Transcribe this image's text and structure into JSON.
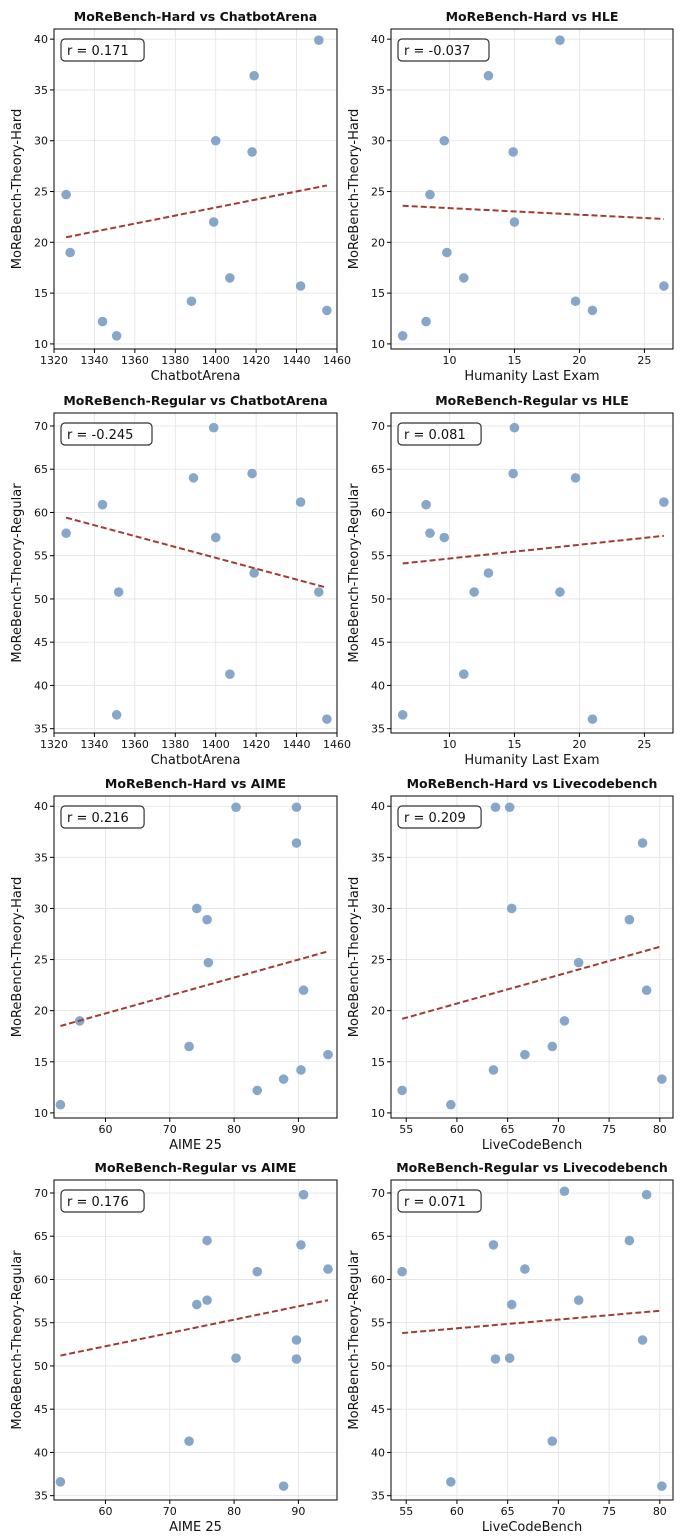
{
  "figure": {
    "colors": {
      "point": "#7d9fc6",
      "trend": "#a13b34",
      "grid": "#e3e3e3",
      "axis": "#000000"
    }
  },
  "chart_data": [
    {
      "type": "scatter",
      "title": "MoReBench-Hard vs ChatbotArena",
      "xlabel": "ChatbotArena",
      "ylabel": "MoReBench-Theory-Hard",
      "xlim": [
        1320,
        1460
      ],
      "ylim": [
        9.5,
        41
      ],
      "xticks": [
        1320,
        1340,
        1360,
        1380,
        1400,
        1420,
        1440,
        1460
      ],
      "yticks": [
        10,
        15,
        20,
        25,
        30,
        35,
        40
      ],
      "r_label": "r = 0.171",
      "points": [
        [
          1326,
          24.7
        ],
        [
          1328,
          19
        ],
        [
          1344,
          12.2
        ],
        [
          1351,
          10.8
        ],
        [
          1388,
          14.2
        ],
        [
          1399,
          22
        ],
        [
          1400,
          30
        ],
        [
          1407,
          16.5
        ],
        [
          1418,
          28.9
        ],
        [
          1419,
          36.4
        ],
        [
          1442,
          15.7
        ],
        [
          1451,
          39.9
        ],
        [
          1455,
          13.3
        ]
      ],
      "trend": [
        [
          1326,
          20.5
        ],
        [
          1455,
          25.6
        ]
      ]
    },
    {
      "type": "scatter",
      "title": "MoReBench-Hard vs HLE",
      "xlabel": "Humanity Last Exam",
      "ylabel": "MoReBench-Theory-Hard",
      "xlim": [
        5.5,
        27.2
      ],
      "ylim": [
        9.5,
        41
      ],
      "xticks": [
        10,
        15,
        20,
        25
      ],
      "yticks": [
        10,
        15,
        20,
        25,
        30,
        35,
        40
      ],
      "r_label": "r = -0.037",
      "points": [
        [
          6.4,
          10.8
        ],
        [
          8.2,
          12.2
        ],
        [
          8.5,
          24.7
        ],
        [
          9.6,
          30
        ],
        [
          9.8,
          19
        ],
        [
          11.1,
          16.5
        ],
        [
          13,
          36.4
        ],
        [
          14.9,
          28.9
        ],
        [
          15,
          22
        ],
        [
          18.5,
          39.9
        ],
        [
          19.7,
          14.2
        ],
        [
          21,
          13.3
        ],
        [
          26.5,
          15.7
        ]
      ],
      "trend": [
        [
          6.4,
          23.6
        ],
        [
          26.5,
          22.3
        ]
      ]
    },
    {
      "type": "scatter",
      "title": "MoReBench-Regular vs ChatbotArena",
      "xlabel": "ChatbotArena",
      "ylabel": "MoReBench-Theory-Regular",
      "xlim": [
        1320,
        1460
      ],
      "ylim": [
        34.5,
        71.5
      ],
      "xticks": [
        1320,
        1340,
        1360,
        1380,
        1400,
        1420,
        1440,
        1460
      ],
      "yticks": [
        35,
        40,
        45,
        50,
        55,
        60,
        65,
        70
      ],
      "r_label": "r = -0.245",
      "points": [
        [
          1326,
          57.6
        ],
        [
          1344,
          60.9
        ],
        [
          1351,
          36.6
        ],
        [
          1352,
          50.8
        ],
        [
          1389,
          64
        ],
        [
          1399,
          69.8
        ],
        [
          1400,
          57.1
        ],
        [
          1407,
          41.3
        ],
        [
          1418,
          64.5
        ],
        [
          1419,
          53
        ],
        [
          1442,
          61.2
        ],
        [
          1451,
          50.8
        ],
        [
          1455,
          36.1
        ]
      ],
      "trend": [
        [
          1326,
          59.4
        ],
        [
          1455,
          51.3
        ]
      ]
    },
    {
      "type": "scatter",
      "title": "MoReBench-Regular vs HLE",
      "xlabel": "Humanity Last Exam",
      "ylabel": "MoReBench-Theory-Regular",
      "xlim": [
        5.5,
        27.2
      ],
      "ylim": [
        34.5,
        71.5
      ],
      "xticks": [
        10,
        15,
        20,
        25
      ],
      "yticks": [
        35,
        40,
        45,
        50,
        55,
        60,
        65,
        70
      ],
      "r_label": "r = 0.081",
      "points": [
        [
          6.4,
          36.6
        ],
        [
          8.2,
          60.9
        ],
        [
          8.5,
          57.6
        ],
        [
          9.6,
          57.1
        ],
        [
          11.1,
          41.3
        ],
        [
          11.9,
          50.8
        ],
        [
          13,
          53
        ],
        [
          14.9,
          64.5
        ],
        [
          15,
          69.8
        ],
        [
          18.5,
          50.8
        ],
        [
          19.7,
          64
        ],
        [
          21,
          36.1
        ],
        [
          26.5,
          61.2
        ]
      ],
      "trend": [
        [
          6.4,
          54.1
        ],
        [
          26.5,
          57.3
        ]
      ]
    },
    {
      "type": "scatter",
      "title": "MoReBench-Hard vs AIME",
      "xlabel": "AIME 25",
      "ylabel": "MoReBench-Theory-Hard",
      "xlim": [
        52,
        96
      ],
      "ylim": [
        9.5,
        41
      ],
      "xticks": [
        60,
        70,
        80,
        90
      ],
      "yticks": [
        10,
        15,
        20,
        25,
        30,
        35,
        40
      ],
      "r_label": "r = 0.216",
      "points": [
        [
          53,
          10.8
        ],
        [
          56,
          19
        ],
        [
          73,
          16.5
        ],
        [
          74.2,
          30
        ],
        [
          75.8,
          28.9
        ],
        [
          76,
          24.7
        ],
        [
          80.3,
          39.9
        ],
        [
          83.6,
          12.2
        ],
        [
          87.7,
          13.3
        ],
        [
          89.7,
          39.9
        ],
        [
          89.7,
          36.4
        ],
        [
          90.4,
          14.2
        ],
        [
          90.8,
          22
        ],
        [
          94.6,
          15.7
        ]
      ],
      "trend": [
        [
          53,
          18.5
        ],
        [
          94.6,
          25.8
        ]
      ]
    },
    {
      "type": "scatter",
      "title": "MoReBench-Hard vs Livecodebench",
      "xlabel": "LiveCodeBench",
      "ylabel": "MoReBench-Theory-Hard",
      "xlim": [
        53.5,
        81.3
      ],
      "ylim": [
        9.5,
        41
      ],
      "xticks": [
        55,
        60,
        65,
        70,
        75,
        80
      ],
      "yticks": [
        10,
        15,
        20,
        25,
        30,
        35,
        40
      ],
      "r_label": "r = 0.209",
      "points": [
        [
          54.6,
          12.2
        ],
        [
          59.4,
          10.8
        ],
        [
          63.6,
          14.2
        ],
        [
          63.8,
          39.9
        ],
        [
          65.2,
          39.9
        ],
        [
          65.4,
          30
        ],
        [
          66.7,
          15.7
        ],
        [
          69.4,
          16.5
        ],
        [
          70.6,
          19
        ],
        [
          72,
          24.7
        ],
        [
          77,
          28.9
        ],
        [
          78.3,
          36.4
        ],
        [
          78.7,
          22
        ],
        [
          80.2,
          13.3
        ]
      ],
      "trend": [
        [
          54.6,
          19.2
        ],
        [
          80.2,
          26.3
        ]
      ]
    },
    {
      "type": "scatter",
      "title": "MoReBench-Regular vs AIME",
      "xlabel": "AIME 25",
      "ylabel": "MoReBench-Theory-Regular",
      "xlim": [
        52,
        96
      ],
      "ylim": [
        34.5,
        71.5
      ],
      "xticks": [
        60,
        70,
        80,
        90
      ],
      "yticks": [
        35,
        40,
        45,
        50,
        55,
        60,
        65,
        70
      ],
      "r_label": "r = 0.176",
      "points": [
        [
          53,
          36.6
        ],
        [
          73,
          41.3
        ],
        [
          74.2,
          57.1
        ],
        [
          75.8,
          57.6
        ],
        [
          75.8,
          64.5
        ],
        [
          80.3,
          50.9
        ],
        [
          83.6,
          60.9
        ],
        [
          87.7,
          36.1
        ],
        [
          89.7,
          53
        ],
        [
          89.7,
          50.8
        ],
        [
          90.4,
          64
        ],
        [
          90.8,
          69.8
        ],
        [
          94.6,
          61.2
        ]
      ],
      "trend": [
        [
          53,
          51.2
        ],
        [
          94.6,
          57.6
        ]
      ]
    },
    {
      "type": "scatter",
      "title": "MoReBench-Regular vs Livecodebench",
      "xlabel": "LiveCodeBench",
      "ylabel": "MoReBench-Theory-Regular",
      "xlim": [
        53.5,
        81.3
      ],
      "ylim": [
        34.5,
        71.5
      ],
      "xticks": [
        55,
        60,
        65,
        70,
        75,
        80
      ],
      "yticks": [
        35,
        40,
        45,
        50,
        55,
        60,
        65,
        70
      ],
      "r_label": "r = 0.071",
      "points": [
        [
          54.6,
          60.9
        ],
        [
          59.4,
          36.6
        ],
        [
          63.6,
          64
        ],
        [
          63.8,
          50.8
        ],
        [
          65.2,
          50.9
        ],
        [
          65.4,
          57.1
        ],
        [
          66.7,
          61.2
        ],
        [
          69.4,
          41.3
        ],
        [
          70.6,
          70.2
        ],
        [
          72,
          57.6
        ],
        [
          77,
          64.5
        ],
        [
          78.3,
          53
        ],
        [
          78.7,
          69.8
        ],
        [
          80.2,
          36.1
        ]
      ],
      "trend": [
        [
          54.6,
          53.8
        ],
        [
          80.2,
          56.4
        ]
      ]
    }
  ]
}
